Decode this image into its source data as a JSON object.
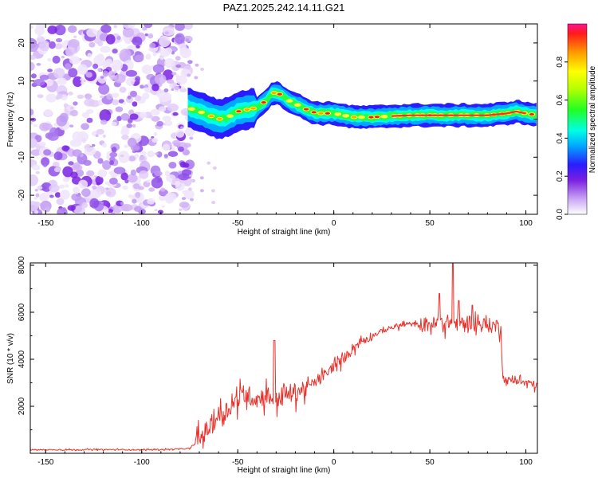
{
  "title": "PAZ1.2025.242.14.11.G21",
  "chart_data": [
    {
      "type": "heatmap",
      "title": "PAZ1.2025.242.14.11.G21",
      "xlabel": "Height of straight line (km)",
      "ylabel": "Frequency (Hz)",
      "xlim": [
        -158,
        106
      ],
      "ylim": [
        -25,
        25
      ],
      "xticks": [
        -150,
        -100,
        -50,
        0,
        50,
        100
      ],
      "yticks": [
        -20,
        -10,
        0,
        10,
        20
      ],
      "colorbar": {
        "label": "Normalized spectral amplitude",
        "range": [
          0,
          1
        ],
        "ticks": [
          "0.0",
          "0.2",
          "0.4",
          "0.6",
          "0.8"
        ]
      },
      "noise_region_km": [
        -158,
        -77
      ],
      "ridge": {
        "x": [
          -76,
          -70,
          -65,
          -60,
          -55,
          -50,
          -45,
          -40,
          -35,
          -32,
          -28,
          -24,
          -20,
          -16,
          -12,
          -8,
          -4,
          0,
          5,
          10,
          15,
          20,
          30,
          40,
          50,
          60,
          70,
          80,
          90,
          95,
          100,
          106
        ],
        "freq": [
          3,
          2,
          1,
          0,
          0.5,
          2,
          2.5,
          3,
          5,
          7,
          6.5,
          5,
          4,
          3,
          2,
          1.5,
          1.5,
          1.5,
          1,
          0.5,
          0.5,
          0.5,
          0.8,
          1,
          1,
          1,
          1,
          1,
          1.5,
          2,
          1.5,
          1
        ]
      }
    },
    {
      "type": "line",
      "xlabel": "Height of straight line (km)",
      "ylabel": "SNR (10 * v/v)",
      "xlim": [
        -158,
        106
      ],
      "ylim": [
        0,
        8100
      ],
      "xticks": [
        -150,
        -100,
        -50,
        0,
        50,
        100
      ],
      "yticks": [
        2000,
        4000,
        6000,
        8000
      ],
      "color": "#e8312a",
      "series": [
        {
          "name": "SNR",
          "x": [
            -158,
            -140,
            -120,
            -100,
            -85,
            -75,
            -71,
            -68,
            -65,
            -60,
            -55,
            -50,
            -45,
            -40,
            -35,
            -30,
            -25,
            -20,
            -15,
            -10,
            -5,
            0,
            5,
            10,
            15,
            20,
            25,
            30,
            35,
            40,
            45,
            50,
            55,
            60,
            65,
            70,
            75,
            80,
            85,
            87,
            88,
            90,
            95,
            100,
            106
          ],
          "y": [
            150,
            150,
            160,
            150,
            170,
            200,
            500,
            800,
            1100,
            1600,
            1900,
            2300,
            2500,
            2300,
            2500,
            2300,
            2500,
            2600,
            2800,
            3000,
            3300,
            3700,
            4000,
            4500,
            4800,
            5000,
            5200,
            5350,
            5450,
            5500,
            5450,
            5500,
            5500,
            5600,
            5500,
            5600,
            5500,
            5450,
            5400,
            5400,
            3200,
            3100,
            3100,
            3000,
            2900
          ],
          "spikes": [
            {
              "x": -31,
              "y": 4800
            },
            {
              "x": 55,
              "y": 6800
            },
            {
              "x": 62,
              "y": 8100
            },
            {
              "x": 65,
              "y": 6500
            },
            {
              "x": 72,
              "y": 6300
            }
          ]
        }
      ]
    }
  ]
}
